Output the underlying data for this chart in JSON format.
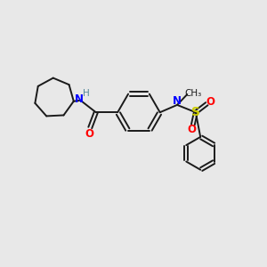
{
  "background_color": "#e8e8e8",
  "bond_color": "#1a1a1a",
  "N_color": "#0000ff",
  "O_color": "#ff0000",
  "S_color": "#cccc00",
  "H_color": "#558899",
  "figsize": [
    3.0,
    3.0
  ],
  "dpi": 100,
  "xlim": [
    0,
    10
  ],
  "ylim": [
    0,
    10
  ]
}
